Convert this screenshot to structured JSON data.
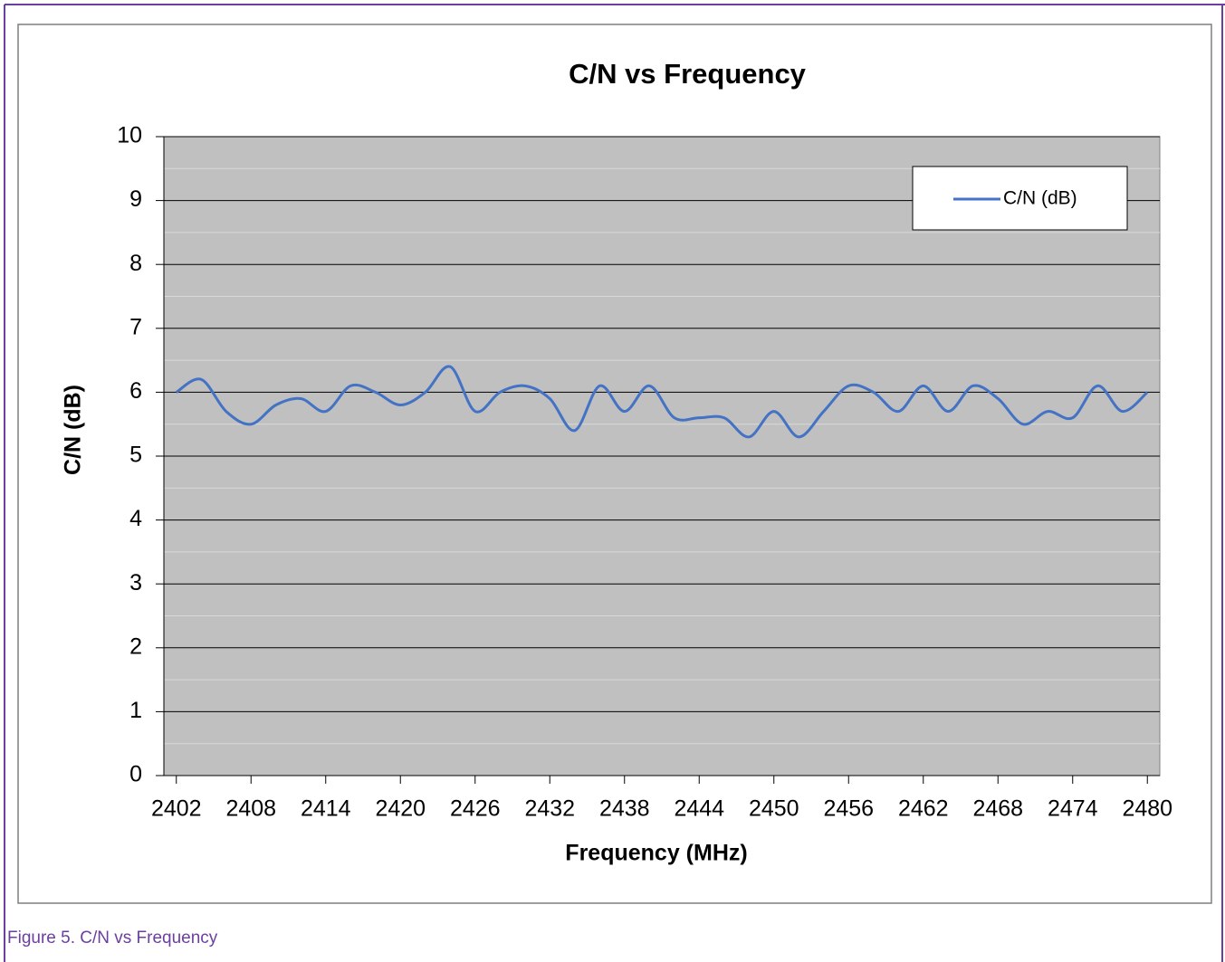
{
  "chart_data": {
    "type": "line",
    "title": "C/N vs Frequency",
    "xlabel": "Frequency (MHz)",
    "ylabel": "C/N (dB)",
    "x": [
      2402,
      2404,
      2406,
      2408,
      2410,
      2412,
      2414,
      2416,
      2418,
      2420,
      2422,
      2424,
      2426,
      2428,
      2430,
      2432,
      2434,
      2436,
      2438,
      2440,
      2442,
      2444,
      2446,
      2448,
      2450,
      2452,
      2454,
      2456,
      2458,
      2460,
      2462,
      2464,
      2466,
      2468,
      2470,
      2472,
      2474,
      2476,
      2478,
      2480
    ],
    "series": [
      {
        "name": "C/N (dB)",
        "color": "#4472c4",
        "values": [
          6.0,
          6.2,
          5.7,
          5.5,
          5.8,
          5.9,
          5.7,
          6.1,
          6.0,
          5.8,
          6.0,
          6.4,
          5.7,
          6.0,
          6.1,
          5.9,
          5.4,
          6.1,
          5.7,
          6.1,
          5.6,
          5.6,
          5.6,
          5.3,
          5.7,
          5.3,
          5.7,
          6.1,
          6.0,
          5.7,
          6.1,
          5.7,
          6.1,
          5.9,
          5.5,
          5.7,
          5.6,
          6.1,
          5.7,
          6.0
        ]
      }
    ],
    "xlim": [
      2401,
      2481
    ],
    "xticks": [
      2402,
      2408,
      2414,
      2420,
      2426,
      2432,
      2438,
      2444,
      2450,
      2456,
      2462,
      2468,
      2474,
      2480
    ],
    "ylim": [
      0,
      10
    ],
    "yticks": [
      0,
      1,
      2,
      3,
      4,
      5,
      6,
      7,
      8,
      9,
      10
    ],
    "yticks_minor": [
      0.5,
      1.5,
      2.5,
      3.5,
      4.5,
      5.5,
      6.5,
      7.5,
      8.5,
      9.5
    ],
    "grid": true,
    "legend": "upper right"
  },
  "caption": "Figure 5.  C/N vs Frequency"
}
